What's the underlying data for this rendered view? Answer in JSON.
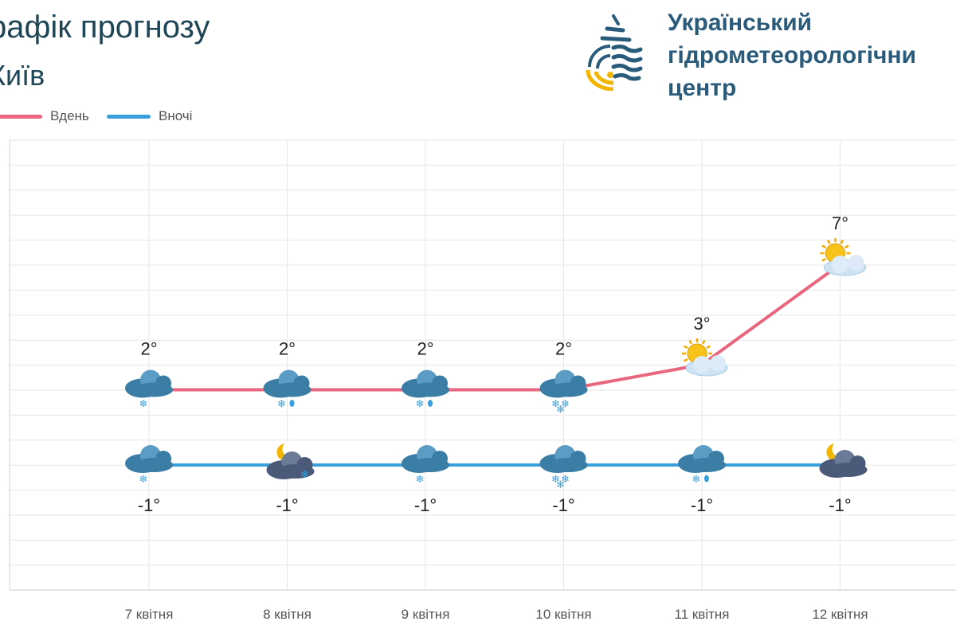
{
  "header": {
    "title": "рафік прогнозу",
    "city": "Київ"
  },
  "logo": {
    "org_name": "Український\nгідрометеорологічни\nцентр",
    "icon": "water-drop-sun-logo",
    "colors": {
      "primary": "#2a5b7a",
      "accent": "#f2b600"
    }
  },
  "legend": {
    "items": [
      {
        "label": "Вдень",
        "color": "#e9677e"
      },
      {
        "label": "Вночі",
        "color": "#3aa0dc"
      }
    ]
  },
  "chart_data": {
    "type": "line",
    "categories": [
      "7 квітня",
      "8 квітня",
      "9 квітня",
      "10 квітня",
      "11 квітня",
      "12 квітня"
    ],
    "series": [
      {
        "name": "Вдень",
        "color": "#e9677e",
        "values": [
          2,
          2,
          2,
          2,
          3,
          7
        ],
        "labels": [
          "2°",
          "2°",
          "2°",
          "2°",
          "3°",
          "7°"
        ],
        "icons": [
          "cloud-snow-icon",
          "cloud-snow-rain-icon",
          "cloud-snow-rain-icon",
          "cloud-heavy-snow-icon",
          "sun-behind-cloud-icon",
          "sun-behind-cloud-icon"
        ]
      },
      {
        "name": "Вночі",
        "color": "#3aa0dc",
        "values": [
          -1,
          -1,
          -1,
          -1,
          -1,
          -1
        ],
        "labels": [
          "-1°",
          "-1°",
          "-1°",
          "-1°",
          "-1°",
          "-1°"
        ],
        "icons": [
          "cloud-snow-icon",
          "moon-cloud-snow-icon",
          "cloud-snow-icon",
          "cloud-heavy-snow-icon",
          "cloud-snow-rain-icon",
          "moon-cloud-icon"
        ]
      }
    ],
    "ylim": [
      -5,
      13
    ],
    "grid": true,
    "legend_position": "top-left"
  }
}
